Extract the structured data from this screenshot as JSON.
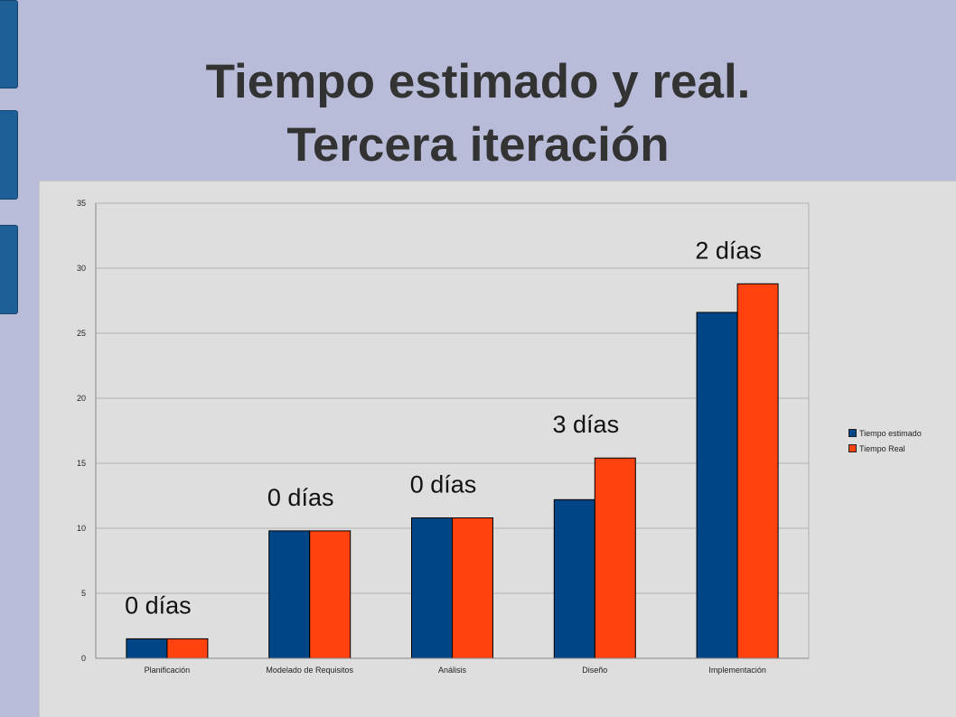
{
  "slide": {
    "title_line1": "Tiempo estimado y real.",
    "title_line2": "Tercera iteración"
  },
  "colors": {
    "background": "#b9bcd9",
    "chart_background": "#dedede",
    "series_estimated": "#004586",
    "series_real": "#ff420e",
    "side_tabs": "#1e5f96"
  },
  "chart_data": {
    "type": "bar",
    "categories": [
      "Planificación",
      "Modelado de Requisitos",
      "Análisis",
      "Diseño",
      "Implementación"
    ],
    "series": [
      {
        "name": "Tiempo estimado",
        "values": [
          1.5,
          9.8,
          10.8,
          12.2,
          26.6
        ]
      },
      {
        "name": "Tiempo Real",
        "values": [
          1.5,
          9.8,
          10.8,
          15.4,
          28.8
        ]
      }
    ],
    "ylim": [
      0,
      35
    ],
    "yticks": [
      "0",
      "5",
      "10",
      "15",
      "20",
      "25",
      "30",
      "35"
    ],
    "annotations": [
      "0 días",
      "0 días",
      "0 días",
      "3 días",
      "2 días"
    ],
    "grid": true,
    "legend_position": "right"
  }
}
